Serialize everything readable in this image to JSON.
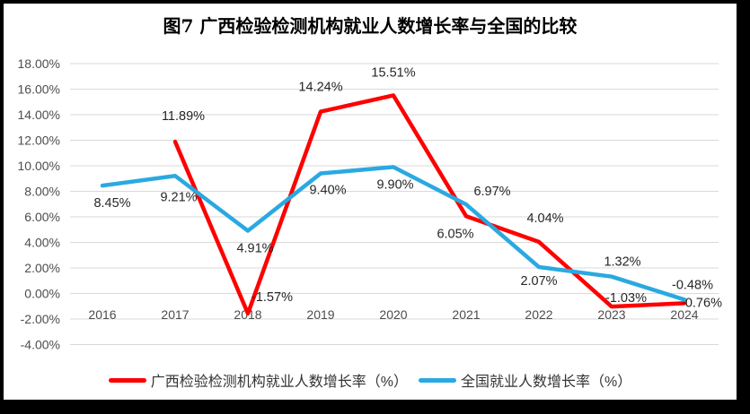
{
  "page": {
    "frame_color": "#000000",
    "canvas_color": "#FFFFFF"
  },
  "chart_data": {
    "type": "line",
    "title": "图7 广西检验检测机构就业人数增长率与全国的比较",
    "categories": [
      "2016",
      "2017",
      "2018",
      "2019",
      "2020",
      "2021",
      "2022",
      "2023",
      "2024"
    ],
    "y_axis": {
      "min": -4,
      "max": 18,
      "step": 2,
      "tick_labels": [
        "18.00%",
        "16.00%",
        "14.00%",
        "12.00%",
        "10.00%",
        "8.00%",
        "6.00%",
        "4.00%",
        "2.00%",
        "0.00%",
        "-2.00%",
        "-4.00%"
      ]
    },
    "grid": true,
    "legend_position": "bottom",
    "colors": {
      "gridline": "#D9D9D9",
      "axis_text": "#4D4D4D",
      "data_label_text": "#262626",
      "title_text": "#000000"
    },
    "series": [
      {
        "name": "广西检验检测机构就业人数增长率（%）",
        "color": "#FF0000",
        "values": [
          null,
          11.89,
          -1.57,
          14.24,
          15.51,
          6.05,
          4.04,
          -1.03,
          -0.76
        ],
        "point_labels": [
          "",
          "11.89%",
          "-1.57%",
          "14.24%",
          "15.51%",
          "6.05%",
          "4.04%",
          "-1.03%",
          "-0.76%"
        ]
      },
      {
        "name": "全国就业人数增长率（%）",
        "color": "#2AA9E1",
        "values": [
          8.45,
          9.21,
          4.91,
          9.4,
          9.9,
          6.97,
          2.07,
          1.32,
          -0.48
        ],
        "point_labels": [
          "8.45%",
          "9.21%",
          "4.91%",
          "9.40%",
          "9.90%",
          "6.97%",
          "2.07%",
          "1.32%",
          "-0.48%"
        ]
      }
    ]
  }
}
